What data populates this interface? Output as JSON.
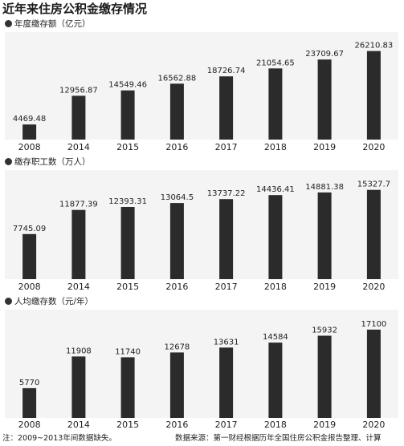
{
  "title": "近年来住房公积金缴存情况",
  "chart_data": [
    {
      "type": "bar",
      "title": "年度缴存额（亿元）",
      "categories": [
        "2008",
        "2014",
        "2015",
        "2016",
        "2017",
        "2018",
        "2019",
        "2020"
      ],
      "values": [
        4469.48,
        12956.87,
        14549.46,
        16562.88,
        18726.74,
        21054.65,
        23709.67,
        26210.83
      ],
      "value_labels": [
        "4469.48",
        "12956.87",
        "14549.46",
        "16562.88",
        "18726.74",
        "21054.65",
        "23709.67",
        "26210.83"
      ],
      "ylim": [
        0,
        28500
      ],
      "bar_color": "#2b2b2b",
      "grid": false
    },
    {
      "type": "bar",
      "title": "缴存职工数（万人）",
      "categories": [
        "2008",
        "2014",
        "2015",
        "2016",
        "2017",
        "2018",
        "2019",
        "2020"
      ],
      "values": [
        7745.09,
        11877.39,
        12393.31,
        13064.5,
        13737.22,
        14436.41,
        14881.38,
        15327.7
      ],
      "value_labels": [
        "7745.09",
        "11877.39",
        "12393.31",
        "13064.5",
        "13737.22",
        "14436.41",
        "14881.38",
        "15327.7"
      ],
      "ylim": [
        0,
        16800
      ],
      "bar_color": "#2b2b2b",
      "grid": false
    },
    {
      "type": "bar",
      "title": "人均缴存数（元/年）",
      "categories": [
        "2008",
        "2014",
        "2015",
        "2016",
        "2017",
        "2018",
        "2019",
        "2020"
      ],
      "values": [
        5770,
        11908,
        11740,
        12678,
        13631,
        14584,
        15932,
        17100
      ],
      "value_labels": [
        "5770",
        "11908",
        "11740",
        "12678",
        "13631",
        "14584",
        "15932",
        "17100"
      ],
      "ylim": [
        0,
        18800
      ],
      "bar_color": "#2b2b2b",
      "grid": false
    }
  ],
  "footer": {
    "note": "注：2009~2013年间数据缺失。",
    "source": "数据来源：第一财经根据历年全国住房公积金报告整理、计算"
  }
}
